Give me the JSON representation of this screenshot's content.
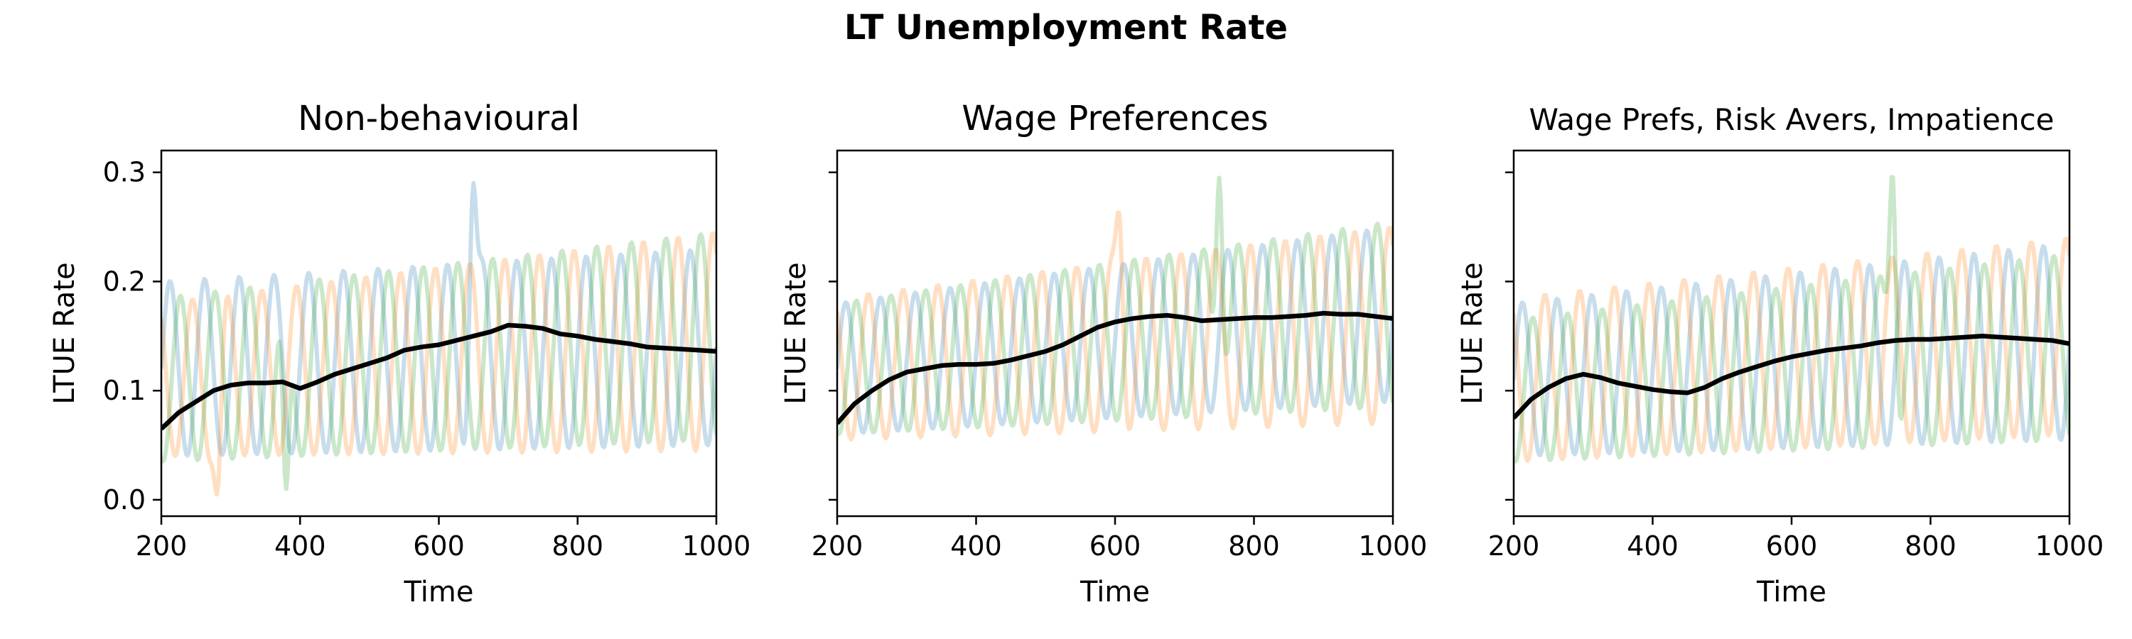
{
  "figure": {
    "title": "LT Unemployment Rate"
  },
  "colors": {
    "run_a": "#1f77b4",
    "run_b": "#ff7f0e",
    "run_c": "#2ca02c",
    "mean": "#000000"
  },
  "chart_data": [
    {
      "type": "line",
      "title": "Non-behavioural",
      "xlabel": "Time",
      "ylabel": "LTUE Rate",
      "xlim": [
        200,
        1000
      ],
      "ylim": [
        -0.015,
        0.32
      ],
      "xticks": [
        200,
        400,
        600,
        800,
        1000
      ],
      "yticks": [
        0.0,
        0.1,
        0.2,
        0.3
      ],
      "ytick_labels": [
        "0.0",
        "0.1",
        "0.2",
        "0.3"
      ],
      "grid": false,
      "runs": [
        {
          "period": 50,
          "phase": 0.0,
          "base_start": 0.12,
          "base_end": 0.14,
          "amp_start": 0.08,
          "amp_end": 0.09,
          "peaks": [
            [
              650,
              0.29
            ]
          ]
        },
        {
          "period": 50,
          "phase": 0.35,
          "base_start": 0.11,
          "base_end": 0.145,
          "amp_start": 0.07,
          "amp_end": 0.1,
          "peaks": [
            [
              280,
              0.005
            ]
          ]
        },
        {
          "period": 50,
          "phase": 0.7,
          "base_start": 0.11,
          "base_end": 0.15,
          "amp_start": 0.075,
          "amp_end": 0.095,
          "peaks": [
            [
              380,
              0.01
            ]
          ]
        }
      ],
      "series": [
        {
          "name": "",
          "x": [
            200,
            225,
            250,
            275,
            300,
            325,
            350,
            375,
            400,
            425,
            450,
            475,
            500,
            525,
            550,
            575,
            600,
            625,
            650,
            675,
            700,
            725,
            750,
            775,
            800,
            825,
            850,
            875,
            900,
            925,
            950,
            975,
            1000
          ],
          "y": [
            0.065,
            0.08,
            0.09,
            0.1,
            0.105,
            0.107,
            0.107,
            0.108,
            0.102,
            0.108,
            0.115,
            0.12,
            0.125,
            0.13,
            0.137,
            0.14,
            0.142,
            0.146,
            0.15,
            0.154,
            0.16,
            0.159,
            0.157,
            0.152,
            0.15,
            0.147,
            0.145,
            0.143,
            0.14,
            0.139,
            0.138,
            0.137,
            0.136
          ]
        }
      ]
    },
    {
      "type": "line",
      "title": "Wage Preferences",
      "xlabel": "Time",
      "ylabel": "LTUE Rate",
      "xlim": [
        200,
        1000
      ],
      "ylim": [
        -0.015,
        0.32
      ],
      "xticks": [
        200,
        400,
        600,
        800,
        1000
      ],
      "yticks": [
        0.0,
        0.1,
        0.2,
        0.3
      ],
      "ytick_labels": [
        "",
        "",
        "",
        ""
      ],
      "grid": false,
      "runs": [
        {
          "period": 50,
          "phase": 0.0,
          "base_start": 0.12,
          "base_end": 0.17,
          "amp_start": 0.06,
          "amp_end": 0.08,
          "peaks": []
        },
        {
          "period": 50,
          "phase": 0.35,
          "base_start": 0.12,
          "base_end": 0.16,
          "amp_start": 0.065,
          "amp_end": 0.09,
          "peaks": [
            [
              605,
              0.265
            ]
          ]
        },
        {
          "period": 50,
          "phase": 0.7,
          "base_start": 0.12,
          "base_end": 0.17,
          "amp_start": 0.06,
          "amp_end": 0.085,
          "peaks": [
            [
              750,
              0.295
            ]
          ]
        }
      ],
      "series": [
        {
          "name": "",
          "x": [
            200,
            225,
            250,
            275,
            300,
            325,
            350,
            375,
            400,
            425,
            450,
            475,
            500,
            525,
            550,
            575,
            600,
            625,
            650,
            675,
            700,
            725,
            750,
            775,
            800,
            825,
            850,
            875,
            900,
            925,
            950,
            975,
            1000
          ],
          "y": [
            0.07,
            0.088,
            0.1,
            0.11,
            0.117,
            0.12,
            0.123,
            0.124,
            0.124,
            0.125,
            0.128,
            0.132,
            0.136,
            0.142,
            0.15,
            0.158,
            0.163,
            0.166,
            0.168,
            0.169,
            0.167,
            0.164,
            0.165,
            0.166,
            0.167,
            0.167,
            0.168,
            0.169,
            0.171,
            0.17,
            0.17,
            0.168,
            0.166
          ]
        }
      ]
    },
    {
      "type": "line",
      "title": "Wage Prefs, Risk Avers, Impatience",
      "xlabel": "Time",
      "ylabel": "LTUE Rate",
      "xlim": [
        200,
        1000
      ],
      "ylim": [
        -0.015,
        0.32
      ],
      "xticks": [
        200,
        400,
        600,
        800,
        1000
      ],
      "yticks": [
        0.0,
        0.1,
        0.2,
        0.3
      ],
      "ytick_labels": [
        "",
        "",
        "",
        ""
      ],
      "grid": false,
      "runs": [
        {
          "period": 50,
          "phase": 0.0,
          "base_start": 0.11,
          "base_end": 0.145,
          "amp_start": 0.07,
          "amp_end": 0.09,
          "peaks": []
        },
        {
          "period": 50,
          "phase": 0.35,
          "base_start": 0.11,
          "base_end": 0.15,
          "amp_start": 0.075,
          "amp_end": 0.09,
          "peaks": []
        },
        {
          "period": 50,
          "phase": 0.7,
          "base_start": 0.1,
          "base_end": 0.14,
          "amp_start": 0.065,
          "amp_end": 0.085,
          "peaks": [
            [
              745,
              0.3
            ]
          ]
        }
      ],
      "series": [
        {
          "name": "",
          "x": [
            200,
            225,
            250,
            275,
            300,
            325,
            350,
            375,
            400,
            425,
            450,
            475,
            500,
            525,
            550,
            575,
            600,
            625,
            650,
            675,
            700,
            725,
            750,
            775,
            800,
            825,
            850,
            875,
            900,
            925,
            950,
            975,
            1000
          ],
          "y": [
            0.075,
            0.092,
            0.103,
            0.111,
            0.115,
            0.112,
            0.107,
            0.104,
            0.101,
            0.099,
            0.098,
            0.103,
            0.111,
            0.117,
            0.122,
            0.127,
            0.131,
            0.134,
            0.137,
            0.139,
            0.141,
            0.144,
            0.146,
            0.147,
            0.147,
            0.148,
            0.149,
            0.15,
            0.149,
            0.148,
            0.147,
            0.146,
            0.143
          ]
        }
      ]
    }
  ]
}
